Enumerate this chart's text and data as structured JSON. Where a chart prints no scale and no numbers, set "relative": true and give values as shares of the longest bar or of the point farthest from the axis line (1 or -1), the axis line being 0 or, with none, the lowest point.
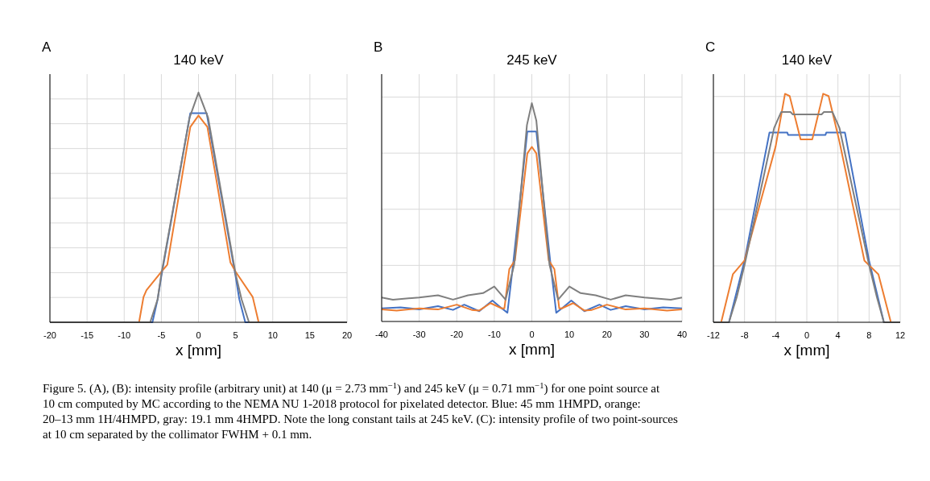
{
  "chart_data": [
    {
      "type": "line",
      "title": "140 keV",
      "xlabel": "x [mm]",
      "relative": true,
      "grid": true,
      "marker": "none",
      "line_style": "solid",
      "tick_labels": "x",
      "annotations": [
        "A"
      ],
      "xlim": [
        -20,
        20
      ],
      "xticks": [
        -20,
        -15,
        -10,
        -5,
        0,
        5,
        10,
        15,
        20
      ],
      "series": [
        {
          "color": "#4472c4",
          "x": [
            -20,
            -6.2,
            -5.5,
            -5,
            -1.1,
            1.1,
            5,
            5.5,
            6.3,
            20
          ],
          "values": [
            0,
            0,
            0.1,
            0.2,
            0.91,
            0.91,
            0.2,
            0.1,
            0,
            0
          ]
        },
        {
          "color": "#ed7d31",
          "x": [
            -20,
            -8,
            -7.4,
            -7,
            -5,
            -4.2,
            -1.1,
            0,
            1.2,
            4.3,
            5,
            7.3,
            8.1,
            20
          ],
          "values": [
            0,
            0,
            0.11,
            0.14,
            0.22,
            0.25,
            0.85,
            0.9,
            0.85,
            0.26,
            0.22,
            0.11,
            0,
            0
          ]
        },
        {
          "color": "#7f7f7f",
          "x": [
            -20,
            -6.5,
            -5.5,
            -5,
            -1.2,
            0,
            1.3,
            5,
            5.8,
            6.8,
            20
          ],
          "values": [
            0,
            0,
            0.1,
            0.21,
            0.89,
            1,
            0.89,
            0.21,
            0.1,
            0,
            0
          ]
        }
      ]
    },
    {
      "type": "line",
      "title": "245 keV",
      "xlabel": "x [mm]",
      "relative": true,
      "grid": true,
      "marker": "none",
      "line_style": "solid",
      "tick_labels": "x",
      "annotations": [
        "B"
      ],
      "xlim": [
        -40,
        40
      ],
      "xticks": [
        -40,
        -30,
        -20,
        -10,
        0,
        10,
        20,
        30,
        40
      ],
      "series": [
        {
          "color": "#4472c4",
          "x": [
            -40,
            -35,
            -30,
            -25,
            -21,
            -18,
            -14,
            -10.5,
            -8,
            -6.5,
            -5,
            -1.2,
            1.2,
            5,
            6.5,
            8,
            10.5,
            14,
            18,
            21,
            25,
            30,
            35,
            40
          ],
          "values": [
            0.06,
            0.065,
            0.055,
            0.07,
            0.053,
            0.077,
            0.047,
            0.096,
            0.06,
            0.04,
            0.26,
            0.87,
            0.87,
            0.26,
            0.04,
            0.06,
            0.096,
            0.047,
            0.077,
            0.053,
            0.07,
            0.055,
            0.065,
            0.06
          ]
        },
        {
          "color": "#ed7d31",
          "x": [
            -40,
            -36,
            -30,
            -25,
            -20,
            -16,
            -14,
            -11,
            -8,
            -7.3,
            -6,
            -4.5,
            -1.2,
            0,
            1.2,
            4.5,
            6,
            7.3,
            8,
            11,
            14,
            16,
            20,
            25,
            30,
            36,
            40
          ],
          "values": [
            0.055,
            0.05,
            0.06,
            0.055,
            0.077,
            0.053,
            0.05,
            0.084,
            0.06,
            0.06,
            0.24,
            0.28,
            0.77,
            0.8,
            0.77,
            0.28,
            0.24,
            0.06,
            0.06,
            0.084,
            0.05,
            0.053,
            0.077,
            0.055,
            0.06,
            0.05,
            0.055
          ]
        },
        {
          "color": "#7f7f7f",
          "x": [
            -40,
            -37,
            -30,
            -25,
            -21,
            -17,
            -13,
            -10,
            -7,
            -4.7,
            -1.3,
            0,
            1.2,
            4.7,
            7,
            10,
            13,
            17,
            21,
            25,
            30,
            37,
            40
          ],
          "values": [
            0.11,
            0.1,
            0.11,
            0.12,
            0.1,
            0.12,
            0.13,
            0.16,
            0.1,
            0.26,
            0.9,
            1,
            0.92,
            0.26,
            0.1,
            0.16,
            0.13,
            0.12,
            0.1,
            0.12,
            0.11,
            0.1,
            0.11
          ]
        }
      ]
    },
    {
      "type": "line",
      "title": "140 keV",
      "xlabel": "x [mm]",
      "relative": true,
      "grid": true,
      "marker": "none",
      "line_style": "solid",
      "tick_labels": "x",
      "annotations": [
        "C",
        "Figure 5. (A), (B): intensity profile (arbitrary unit) at 140 (μ = 2.73 mm$^{−1}$) and 245 keV (μ = 0.71 mm$^{−1}$) for one point source at",
        "10 cm computed by MC according to the NEMA NU 1-2018 protocol for pixelated detector. Blue: 45 mm 1HMPD, orange:",
        "20–13 mm 1H/4HMPD, gray: 19.1 mm 4HMPD. Note the long constant tails at 245 keV. (C): intensity profile of two point-sources",
        "at 10 cm separated by the collimator FWHM + 0.1 mm."
      ],
      "xlim": [
        -12,
        12
      ],
      "xticks": [
        -12,
        -8,
        -4,
        0,
        4,
        8,
        12
      ],
      "series": [
        {
          "color": "#4472c4",
          "x": [
            -12,
            -10,
            -8,
            -4.8,
            -2.5,
            -2.4,
            2.4,
            2.5,
            4.9,
            8,
            9.9,
            12
          ],
          "values": [
            0,
            0,
            0.27,
            0.83,
            0.83,
            0.82,
            0.82,
            0.83,
            0.83,
            0.27,
            0,
            0
          ]
        },
        {
          "color": "#ed7d31",
          "x": [
            -12,
            -11,
            -9.5,
            -8,
            -4,
            -2.8,
            -2.2,
            -0.8,
            0.7,
            2.1,
            2.8,
            4.2,
            7.4,
            9.2,
            10.8,
            12
          ],
          "values": [
            0,
            0,
            0.21,
            0.27,
            0.77,
            1,
            0.99,
            0.8,
            0.8,
            1,
            0.99,
            0.79,
            0.27,
            0.21,
            0,
            0
          ]
        },
        {
          "color": "#7f7f7f",
          "x": [
            -12,
            -10,
            -9,
            -8,
            -4.2,
            -3.3,
            -2.1,
            -1.8,
            1.9,
            2.2,
            3.3,
            4.2,
            8,
            9,
            9.9,
            12
          ],
          "values": [
            0,
            0,
            0.11,
            0.25,
            0.85,
            0.92,
            0.92,
            0.91,
            0.91,
            0.92,
            0.92,
            0.85,
            0.25,
            0.11,
            0,
            0
          ]
        }
      ]
    }
  ]
}
